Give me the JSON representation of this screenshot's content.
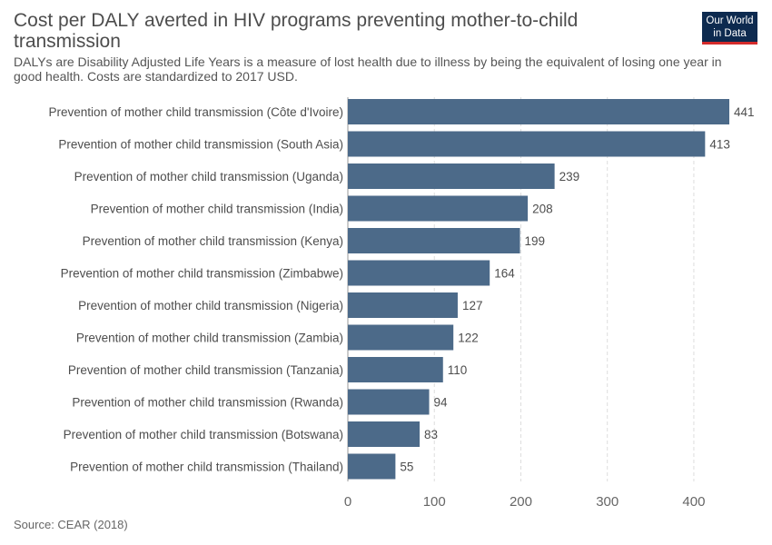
{
  "header": {
    "title": "Cost per DALY averted in HIV programs preventing mother-to-child transmission",
    "subtitle": "DALYs are Disability Adjusted Life Years is a measure of lost health due to illness by being the equivalent of losing one year in good health. Costs are standardized to 2017 USD."
  },
  "logo": {
    "line1": "Our World",
    "line2": "in Data"
  },
  "footer": {
    "source": "Source: CEAR (2018)"
  },
  "colors": {
    "bar": "#4c6a89",
    "grid": "#dddddd",
    "logo_bg": "#0d2a4f",
    "logo_accent": "#d42b2b"
  },
  "chart_data": {
    "type": "bar",
    "orientation": "horizontal",
    "title": "Cost per DALY averted in HIV programs preventing mother-to-child transmission",
    "categories": [
      "Prevention of mother child transmission (Côte d'Ivoire)",
      "Prevention of mother child transmission (South Asia)",
      "Prevention of mother child transmission (Uganda)",
      "Prevention of mother child transmission (India)",
      "Prevention of mother child transmission (Kenya)",
      "Prevention of mother child transmission (Zimbabwe)",
      "Prevention of mother child transmission (Nigeria)",
      "Prevention of mother child transmission (Zambia)",
      "Prevention of mother child transmission (Tanzania)",
      "Prevention of mother child transmission (Rwanda)",
      "Prevention of mother child transmission (Botswana)",
      "Prevention of mother child transmission (Thailand)"
    ],
    "values": [
      441,
      413,
      239,
      208,
      199,
      164,
      127,
      122,
      110,
      94,
      83,
      55
    ],
    "xlim": [
      0,
      441
    ],
    "xticks": [
      0,
      100,
      200,
      300,
      400
    ],
    "grid": true
  }
}
